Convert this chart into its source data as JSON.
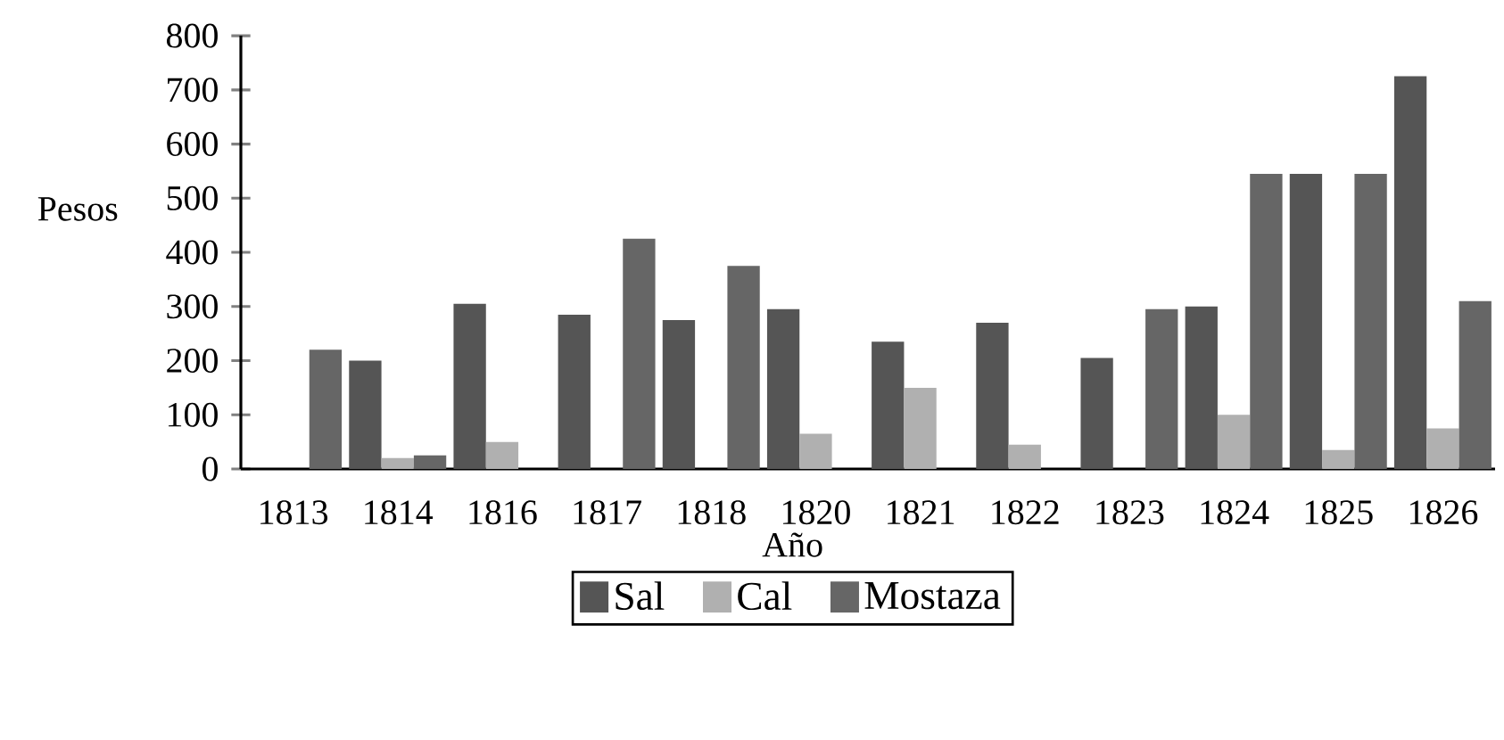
{
  "chart_data": {
    "type": "bar",
    "xlabel": "Año",
    "ylabel": "Pesos",
    "categories": [
      "1813",
      "1814",
      "1816",
      "1817",
      "1818",
      "1820",
      "1821",
      "1822",
      "1823",
      "1824",
      "1825",
      "1826"
    ],
    "series": [
      {
        "name": "Sal",
        "color": "#555555",
        "values": [
          null,
          200,
          305,
          285,
          275,
          295,
          235,
          270,
          205,
          300,
          545,
          725
        ]
      },
      {
        "name": "Cal",
        "color": "#b0b0b0",
        "values": [
          null,
          20,
          50,
          null,
          null,
          65,
          150,
          45,
          null,
          100,
          35,
          75
        ]
      },
      {
        "name": "Mostaza",
        "color": "#666666",
        "values": [
          220,
          25,
          null,
          425,
          375,
          null,
          null,
          null,
          295,
          545,
          545,
          310
        ]
      }
    ],
    "ylim": [
      0,
      800
    ],
    "yticks": [
      0,
      100,
      200,
      300,
      400,
      500,
      600,
      700,
      800
    ],
    "grid": false,
    "legend": "bottom"
  }
}
